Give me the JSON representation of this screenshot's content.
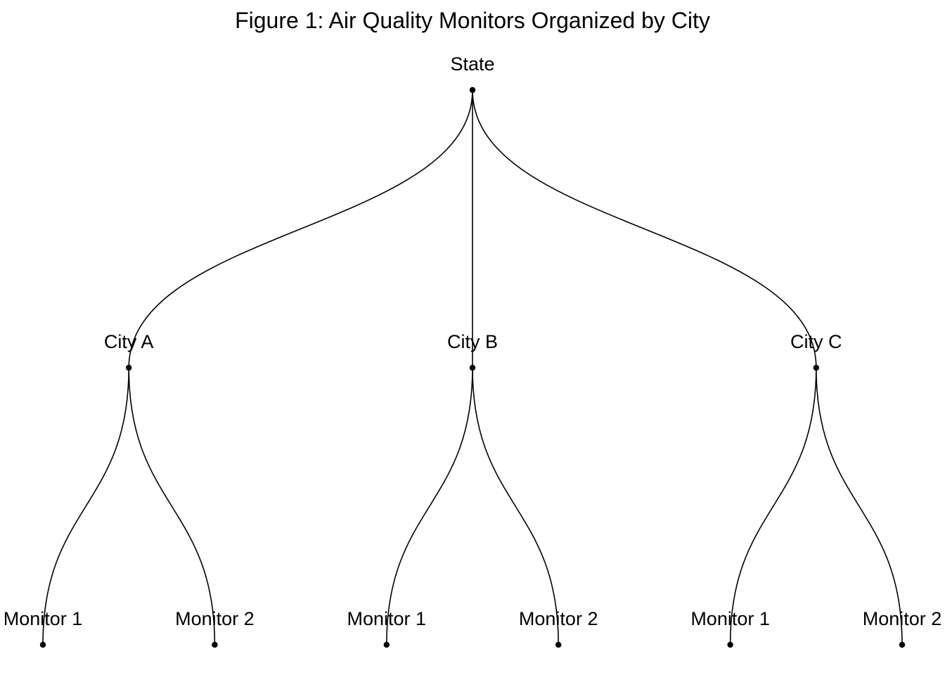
{
  "title": "Figure 1: Air Quality Monitors Organized by City",
  "colors": {
    "edge": "#000000",
    "node": "#000000",
    "background": "#ffffff"
  },
  "tree": {
    "label": "State",
    "children": [
      {
        "label": "City A",
        "children": [
          {
            "label": "Monitor 1"
          },
          {
            "label": "Monitor 2"
          }
        ]
      },
      {
        "label": "City B",
        "children": [
          {
            "label": "Monitor 1"
          },
          {
            "label": "Monitor 2"
          }
        ]
      },
      {
        "label": "City C",
        "children": [
          {
            "label": "Monitor 1"
          },
          {
            "label": "Monitor 2"
          }
        ]
      }
    ]
  }
}
